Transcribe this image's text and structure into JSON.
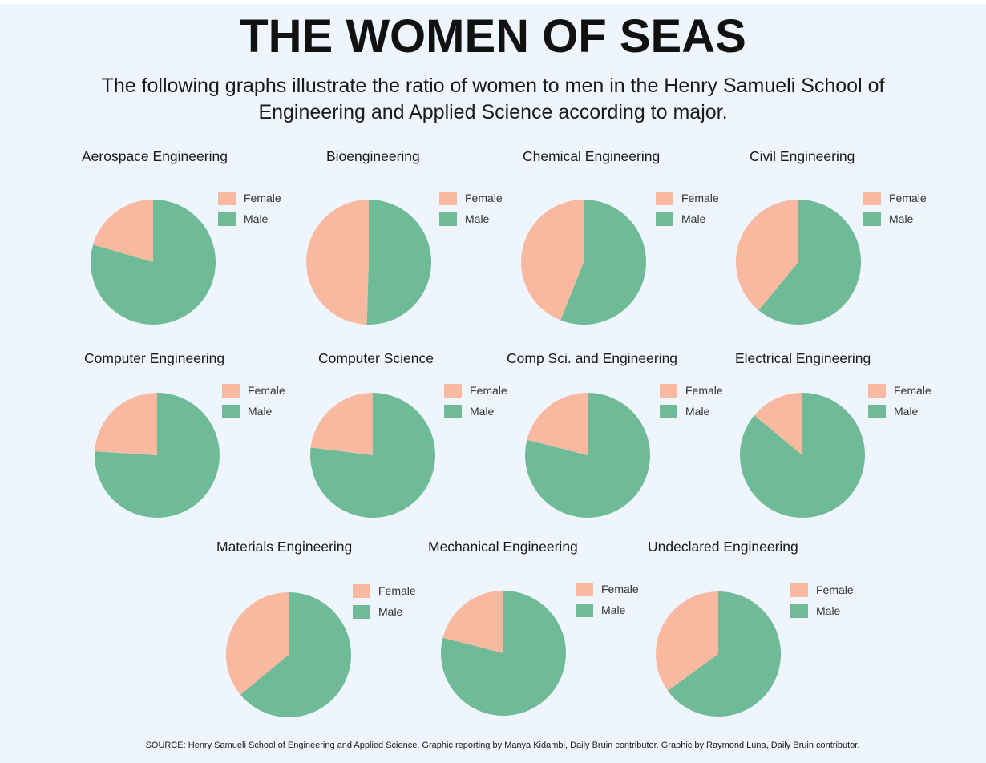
{
  "title": "THE WOMEN OF SEAS",
  "subtitle": "The following graphs illustrate the ratio of women to men in the Henry Samueli School of Engineering and Applied Science according to major.",
  "source": "SOURCE: Henry Samueli School of Engineering and Applied Science. Graphic reporting by Manya Kidambi, Daily Bruin contributor. Graphic by Raymond Luna, Daily Bruin contributor.",
  "colors": {
    "female": "#f8b9a0",
    "male": "#70bb97",
    "background": "#eef5fc"
  },
  "legend": {
    "female": "Female",
    "male": "Male"
  },
  "chart_data": [
    {
      "type": "pie",
      "title": "Aerospace Engineering",
      "categories": [
        "Female",
        "Male"
      ],
      "values": [
        20.5,
        79.5
      ]
    },
    {
      "type": "pie",
      "title": "Bioengineering",
      "categories": [
        "Female",
        "Male"
      ],
      "values": [
        49.5,
        50.5
      ]
    },
    {
      "type": "pie",
      "title": "Chemical Engineering",
      "categories": [
        "Female",
        "Male"
      ],
      "values": [
        44,
        56
      ]
    },
    {
      "type": "pie",
      "title": "Civil Engineering",
      "categories": [
        "Female",
        "Male"
      ],
      "values": [
        39,
        61
      ]
    },
    {
      "type": "pie",
      "title": "Computer Engineering",
      "categories": [
        "Female",
        "Male"
      ],
      "values": [
        24,
        76
      ]
    },
    {
      "type": "pie",
      "title": "Computer Science",
      "categories": [
        "Female",
        "Male"
      ],
      "values": [
        23,
        77
      ]
    },
    {
      "type": "pie",
      "title": "Comp Sci. and Engineering",
      "categories": [
        "Female",
        "Male"
      ],
      "values": [
        21,
        79
      ]
    },
    {
      "type": "pie",
      "title": "Electrical Engineering",
      "categories": [
        "Female",
        "Male"
      ],
      "values": [
        14,
        86
      ]
    },
    {
      "type": "pie",
      "title": "Materials Engineering",
      "categories": [
        "Female",
        "Male"
      ],
      "values": [
        36,
        64
      ]
    },
    {
      "type": "pie",
      "title": "Mechanical Engineering",
      "categories": [
        "Female",
        "Male"
      ],
      "values": [
        21,
        79
      ]
    },
    {
      "type": "pie",
      "title": "Undeclared Engineering",
      "categories": [
        "Female",
        "Male"
      ],
      "values": [
        35,
        65
      ]
    }
  ]
}
